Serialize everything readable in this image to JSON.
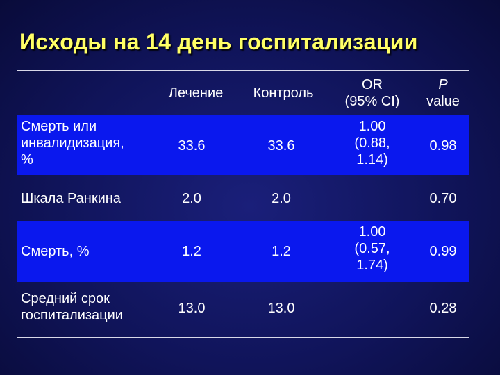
{
  "title": "Исходы на 14 день госпитализации",
  "headers": {
    "treatment": "Лечение",
    "control": "Контроль",
    "or_line1": "OR",
    "or_line2": "(95% CI)",
    "p_line1": "P",
    "p_line2": "value"
  },
  "rows": [
    {
      "label": [
        "Смерть или",
        "инвалидизация,",
        "%"
      ],
      "treatment": "33.6",
      "control": "33.6",
      "or": [
        "1.00",
        "(0.88,",
        "1.14)"
      ],
      "p": "0.98"
    },
    {
      "label": [
        "Шкала Ранкина"
      ],
      "treatment": "2.0",
      "control": "2.0",
      "or": [],
      "p": "0.70"
    },
    {
      "label": [
        "Смерть, %"
      ],
      "treatment": "1.2",
      "control": "1.2",
      "or": [
        "1.00",
        "(0.57,",
        "1.74)"
      ],
      "p": "0.99"
    },
    {
      "label": [
        "Средний срок",
        "госпитализации"
      ],
      "treatment": "13.0",
      "control": "13.0",
      "or": [],
      "p": "0.28"
    }
  ],
  "colors": {
    "background": "#10145a",
    "title": "#ffff66",
    "row_highlight": "#0a18ee",
    "text": "#ffffff",
    "rule": "#d8d8e8"
  }
}
